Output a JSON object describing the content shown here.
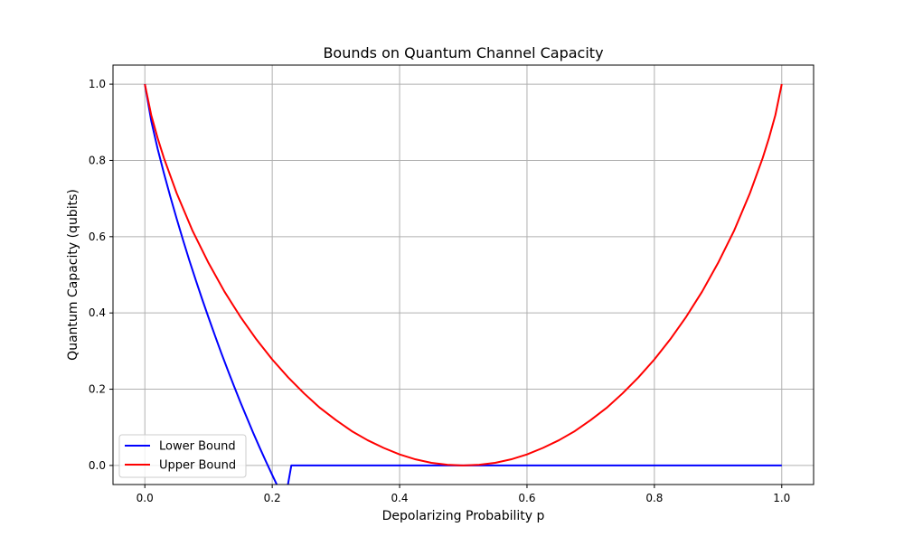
{
  "chart_data": {
    "type": "line",
    "title": "Bounds on Quantum Channel Capacity",
    "xlabel": "Depolarizing Probability p",
    "ylabel": "Quantum Capacity (qubits)",
    "xlim": [
      -0.05,
      1.05
    ],
    "ylim": [
      -0.05,
      1.05
    ],
    "xticks": [
      0.0,
      0.2,
      0.4,
      0.6,
      0.8,
      1.0
    ],
    "xtick_labels": [
      "0.0",
      "0.2",
      "0.4",
      "0.6",
      "0.8",
      "1.0"
    ],
    "yticks": [
      0.0,
      0.2,
      0.4,
      0.6,
      0.8,
      1.0
    ],
    "ytick_labels": [
      "0.0",
      "0.2",
      "0.4",
      "0.6",
      "0.8",
      "1.0"
    ],
    "grid": true,
    "legend": {
      "placement": "lower-left",
      "entries": [
        "Lower Bound",
        "Upper Bound"
      ]
    },
    "series": [
      {
        "name": "Lower Bound",
        "color": "#0000ff",
        "x": [
          0.0,
          0.01,
          0.02,
          0.03,
          0.04,
          0.05,
          0.06,
          0.07,
          0.08,
          0.09,
          0.1,
          0.11,
          0.12,
          0.13,
          0.14,
          0.15,
          0.16,
          0.17,
          0.18,
          0.19,
          0.2,
          0.21,
          0.22,
          0.23,
          0.3,
          0.4,
          0.5,
          0.6,
          0.7,
          0.8,
          0.9,
          1.0
        ],
        "y": [
          1.0,
          0.904,
          0.831,
          0.766,
          0.705,
          0.647,
          0.591,
          0.537,
          0.486,
          0.436,
          0.388,
          0.341,
          0.295,
          0.251,
          0.208,
          0.166,
          0.126,
          0.086,
          0.048,
          0.011,
          -0.025,
          -0.06,
          -0.094,
          0.0,
          0.0,
          0.0,
          0.0,
          0.0,
          0.0,
          0.0,
          0.0,
          0.0
        ]
      },
      {
        "name": "Upper Bound",
        "color": "#ff0000",
        "x": [
          0.0,
          0.01,
          0.02,
          0.03,
          0.05,
          0.075,
          0.1,
          0.125,
          0.15,
          0.175,
          0.2,
          0.225,
          0.25,
          0.275,
          0.3,
          0.325,
          0.35,
          0.375,
          0.4,
          0.425,
          0.45,
          0.475,
          0.5,
          0.525,
          0.55,
          0.575,
          0.6,
          0.625,
          0.65,
          0.675,
          0.7,
          0.725,
          0.75,
          0.775,
          0.8,
          0.825,
          0.85,
          0.875,
          0.9,
          0.925,
          0.95,
          0.97,
          0.98,
          0.99,
          1.0
        ],
        "y": [
          1.0,
          0.919,
          0.859,
          0.806,
          0.714,
          0.615,
          0.531,
          0.456,
          0.39,
          0.331,
          0.278,
          0.231,
          0.189,
          0.151,
          0.119,
          0.09,
          0.066,
          0.046,
          0.029,
          0.016,
          0.007,
          0.002,
          0.0,
          0.002,
          0.007,
          0.016,
          0.029,
          0.046,
          0.066,
          0.09,
          0.119,
          0.151,
          0.189,
          0.231,
          0.278,
          0.331,
          0.39,
          0.456,
          0.531,
          0.615,
          0.714,
          0.806,
          0.859,
          0.919,
          1.0
        ]
      }
    ]
  }
}
